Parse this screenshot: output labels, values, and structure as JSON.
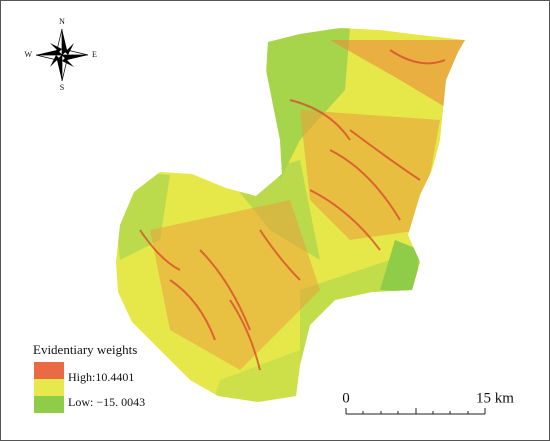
{
  "compass": {
    "north": "N",
    "east": "E",
    "south": "S",
    "west": "W"
  },
  "legend": {
    "title": "Evidentiary weights",
    "high": "High:10.4401",
    "low": "Low: −15. 0043"
  },
  "scale_bar": {
    "start": "0",
    "end": "15 km"
  }
}
